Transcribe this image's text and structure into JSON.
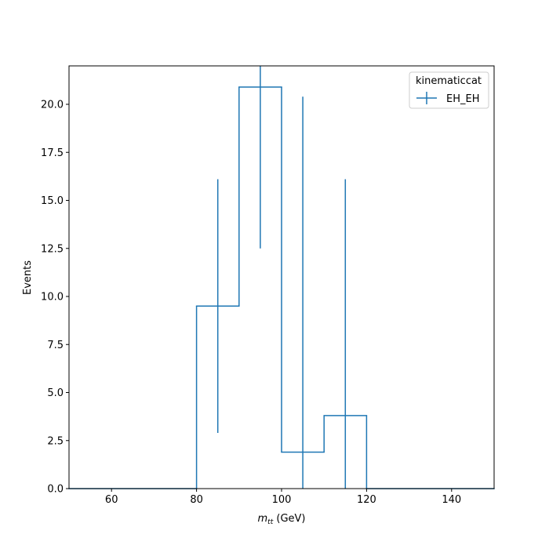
{
  "chart_data": {
    "type": "histogram",
    "title": "",
    "xlabel": "m_tt (GeV)",
    "xlabel_parts": {
      "var": "m",
      "sub": "tt",
      "unit": " (GeV)"
    },
    "ylabel": "Events",
    "xlim": [
      50,
      150
    ],
    "ylim": [
      0,
      22
    ],
    "x_ticks": [
      60,
      80,
      100,
      120,
      140
    ],
    "x_tick_labels": [
      "60",
      "80",
      "100",
      "120",
      "140"
    ],
    "y_ticks": [
      0,
      2.5,
      5,
      7.5,
      10,
      12.5,
      15,
      17.5,
      20
    ],
    "y_tick_labels": [
      "0.0",
      "2.5",
      "5.0",
      "7.5",
      "10.0",
      "12.5",
      "15.0",
      "17.5",
      "20.0"
    ],
    "bin_edges": [
      50,
      80,
      90,
      100,
      110,
      120,
      150
    ],
    "series": [
      {
        "name": "EH_EH",
        "color": "#1f77b4",
        "values": [
          0,
          9.5,
          20.9,
          1.9,
          3.8,
          0
        ],
        "errors": [
          0,
          6.6,
          8.4,
          18.5,
          12.3,
          0
        ]
      }
    ],
    "legend": {
      "title": "kinematiccat",
      "placement": "top-right"
    },
    "grid": false
  }
}
